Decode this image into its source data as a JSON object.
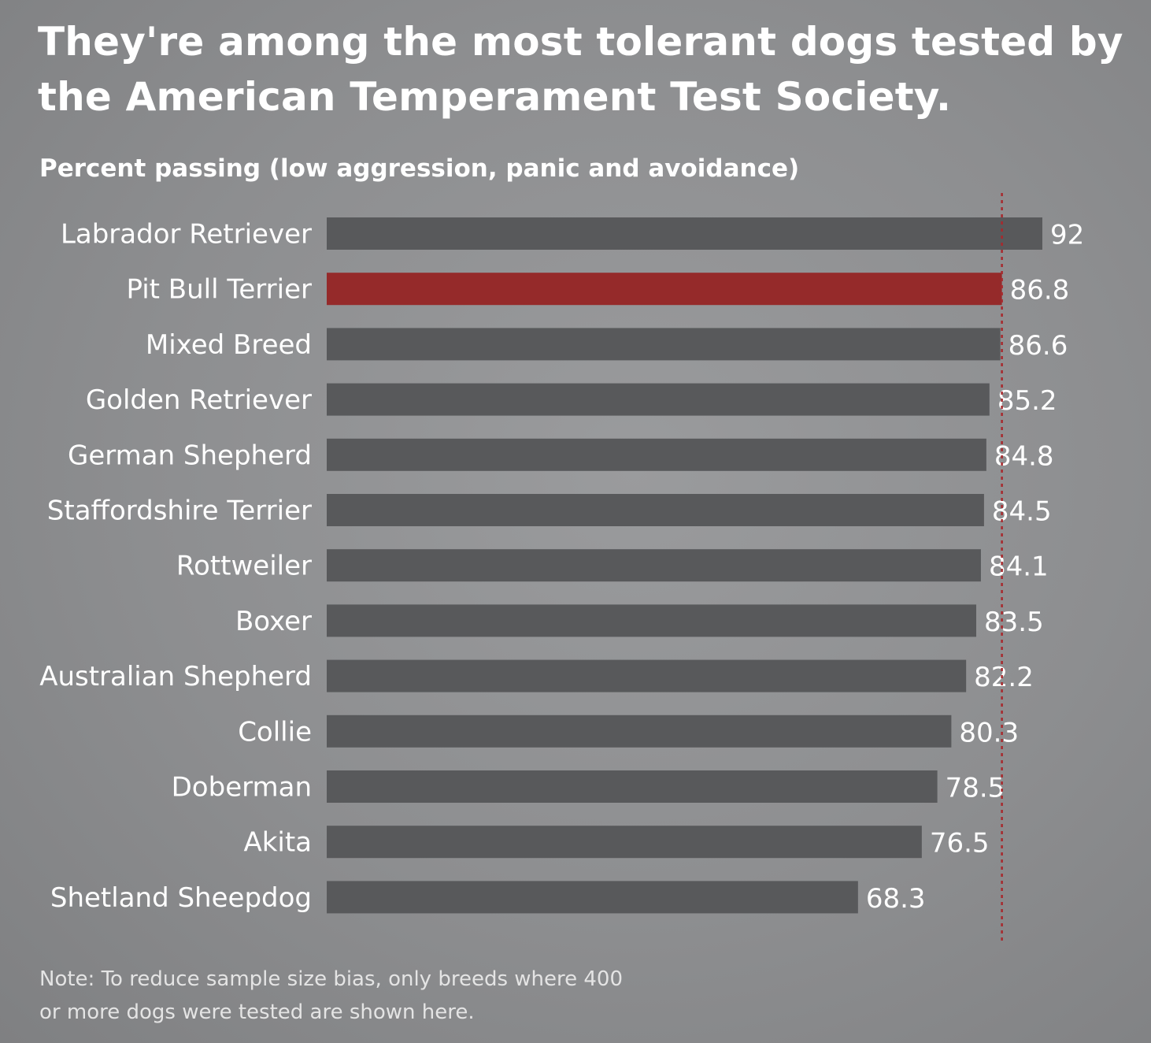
{
  "chart_data": {
    "type": "bar",
    "orientation": "horizontal",
    "title": "They're among the most tolerant dogs tested by the American Temperament Test Society.",
    "subtitle": "Percent passing (low aggression, panic and avoidance)",
    "categories": [
      "Labrador Retriever",
      "Pit Bull Terrier",
      "Mixed Breed",
      "Golden Retriever",
      "German Shepherd",
      "Staffordshire Terrier",
      "Rottweiler",
      "Boxer",
      "Australian Shepherd",
      "Collie",
      "Doberman",
      "Akita",
      "Shetland Sheepdog"
    ],
    "values": [
      92,
      86.8,
      86.6,
      85.2,
      84.8,
      84.5,
      84.1,
      83.5,
      82.2,
      80.3,
      78.5,
      76.5,
      68.3
    ],
    "value_labels": [
      "92",
      "86.8",
      "86.6",
      "85.2",
      "84.8",
      "84.5",
      "84.1",
      "83.5",
      "82.2",
      "80.3",
      "78.5",
      "76.5",
      "68.3"
    ],
    "highlight_category": "Pit Bull Terrier",
    "reference_line_value": 86.8,
    "reference_line_style": "dashed",
    "xlim": [
      0,
      92
    ],
    "grid": false,
    "legend": "none",
    "colors": {
      "bar": "#58595b",
      "highlight": "#952a2a",
      "reference_line": "#a8292d",
      "text": "#ffffff"
    }
  },
  "note": {
    "line1": "Note: To reduce sample size bias, only breeds where 400",
    "line2": "or more dogs were tested are shown here."
  }
}
